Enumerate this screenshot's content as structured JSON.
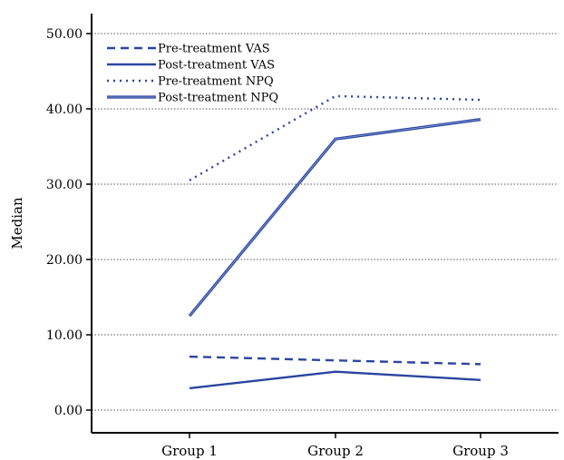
{
  "chart_data": {
    "type": "line",
    "title": "",
    "xlabel": "",
    "ylabel": "Median",
    "categories": [
      "Group 1",
      "Group 2",
      "Group 3"
    ],
    "ylim": [
      0,
      50
    ],
    "yticks": [
      0,
      10,
      20,
      30,
      40,
      50
    ],
    "ytick_labels": [
      "0.00",
      "10.00",
      "20.00",
      "30.00",
      "40.00",
      "50.00"
    ],
    "grid": "horizontal dotted",
    "legend_position": "top-left",
    "series": [
      {
        "name": "Pre-treatment VAS",
        "values": [
          7.1,
          6.6,
          6.1
        ],
        "style": "dashed",
        "color": "#2a45a0"
      },
      {
        "name": "Post-treatment VAS",
        "values": [
          2.9,
          5.1,
          4.0
        ],
        "style": "solid",
        "color": "#2a45a0"
      },
      {
        "name": "Pre-treatment NPQ",
        "values": [
          30.5,
          41.7,
          41.2
        ],
        "style": "dotted",
        "color": "#2a45a0"
      },
      {
        "name": "Post-treatment NPQ",
        "values": [
          12.5,
          36.0,
          38.6
        ],
        "style": "double",
        "color": "#2a45a0"
      }
    ]
  }
}
